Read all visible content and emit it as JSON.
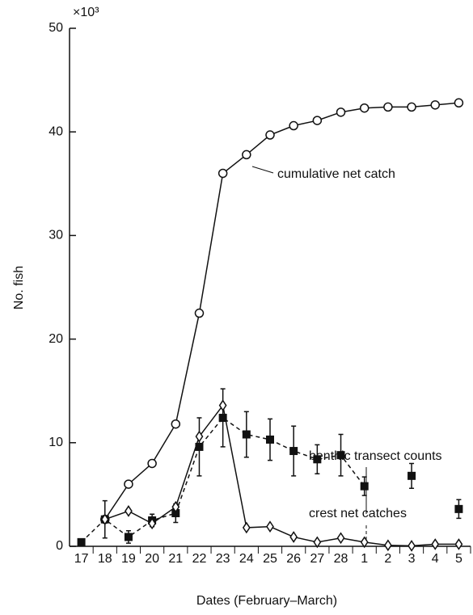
{
  "chart_data": {
    "type": "line",
    "y_multiplier": "×10³",
    "xlabel": "Dates (February–March)",
    "ylabel": "No. fish",
    "categories": [
      "17",
      "18",
      "19",
      "20",
      "21",
      "22",
      "23",
      "24",
      "25",
      "26",
      "27",
      "28",
      "1",
      "2",
      "3",
      "4",
      "5"
    ],
    "ylim": [
      0,
      50
    ],
    "yticks": [
      0,
      10,
      20,
      30,
      40,
      50
    ],
    "series": [
      {
        "name": "cumulative net catch",
        "marker": "circle",
        "dash": false,
        "color": "#111111",
        "values": [
          null,
          2.6,
          6.0,
          8.0,
          11.8,
          22.5,
          36.0,
          37.8,
          39.7,
          40.6,
          41.1,
          41.9,
          42.3,
          42.4,
          42.4,
          42.6,
          42.8
        ]
      },
      {
        "name": "benthic transect counts",
        "marker": "square",
        "dash": true,
        "color": "#111111",
        "values": [
          0.4,
          2.6,
          0.9,
          2.5,
          3.2,
          9.6,
          12.4,
          10.8,
          10.3,
          9.2,
          8.4,
          8.8,
          5.8,
          null,
          6.8,
          null,
          3.6
        ],
        "errors": [
          null,
          1.8,
          0.6,
          0.6,
          0.9,
          2.8,
          2.8,
          2.2,
          2.0,
          2.4,
          1.4,
          2.0,
          0.9,
          null,
          1.2,
          null,
          0.9
        ]
      },
      {
        "name": "crest net catches",
        "marker": "diamond",
        "dash": false,
        "color": "#111111",
        "values": [
          null,
          2.6,
          3.4,
          2.2,
          3.8,
          10.6,
          13.6,
          1.8,
          1.9,
          0.9,
          0.4,
          0.8,
          0.4,
          0.1,
          0.05,
          0.2,
          0.2
        ]
      }
    ]
  }
}
